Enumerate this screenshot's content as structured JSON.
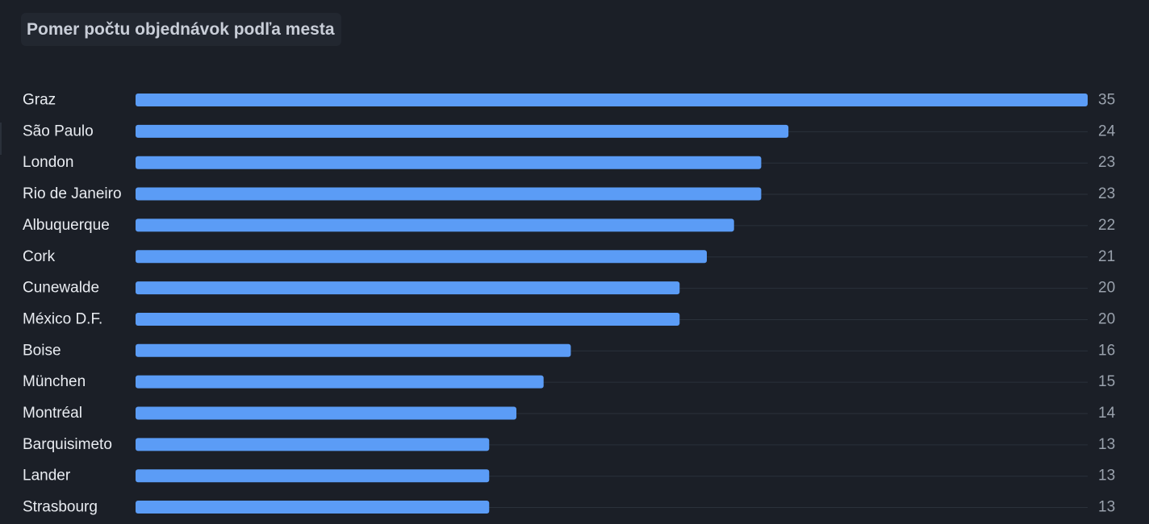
{
  "panel": {
    "title": "Pomer počtu objednávok podľa mesta"
  },
  "colors": {
    "background": "#1b1f27",
    "bar": "#5b9cf6",
    "track": "#2b313b",
    "category_label": "#e9ecf1",
    "value_label": "#9aa2ad",
    "title": "#c9ced8"
  },
  "chart_data": {
    "type": "bar",
    "orientation": "horizontal",
    "title": "Pomer počtu objednávok podľa mesta",
    "xlabel": "",
    "ylabel": "",
    "xlim": [
      0,
      35
    ],
    "grid": false,
    "legend": "none",
    "categories": [
      "Graz",
      "São Paulo",
      "London",
      "Rio de Janeiro",
      "Albuquerque",
      "Cork",
      "Cunewalde",
      "México D.F.",
      "Boise",
      "München",
      "Montréal",
      "Barquisimeto",
      "Lander",
      "Strasbourg"
    ],
    "values": [
      35,
      24,
      23,
      23,
      22,
      21,
      20,
      20,
      16,
      15,
      14,
      13,
      13,
      13
    ]
  }
}
